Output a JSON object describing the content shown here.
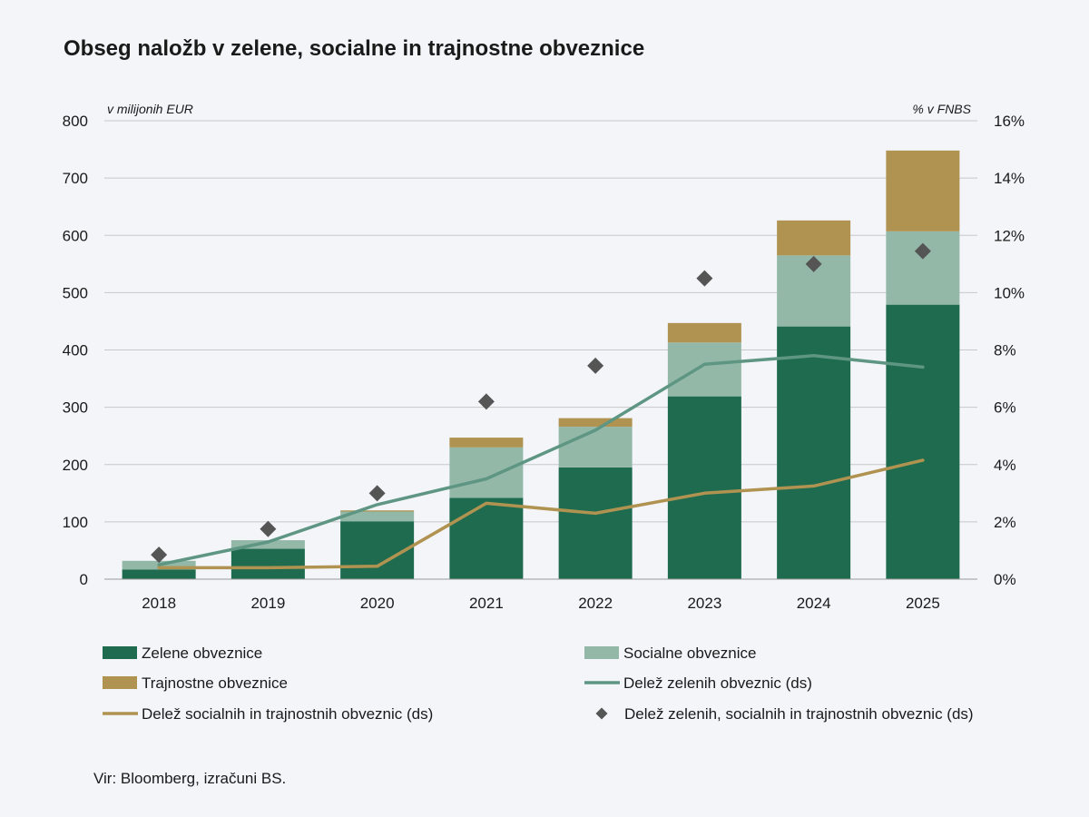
{
  "title": "Obseg naložb v zelene, socialne in trajnostne obveznice",
  "source": "Vir: Bloomberg, izračuni BS.",
  "colors": {
    "green": "#1f6b4f",
    "social": "#93b8a8",
    "sustainable": "#b09350",
    "green_share_line": "#5e9683",
    "soc_sust_line": "#b09350",
    "total_share_marker": "#555555",
    "grid": "#c8c8c8",
    "axis": "#999999"
  },
  "chart_data": {
    "type": "bar",
    "stacked": true,
    "categories": [
      "2018",
      "2019",
      "2020",
      "2021",
      "2022",
      "2023",
      "2024",
      "2025"
    ],
    "ylabel": "v milijonih EUR",
    "y2label": "% v FNBS",
    "ylim": [
      0,
      800
    ],
    "y2lim": [
      0,
      16
    ],
    "yticks": [
      "0",
      "100",
      "200",
      "300",
      "400",
      "500",
      "600",
      "700",
      "800"
    ],
    "y2ticks": [
      "0%",
      "2%",
      "4%",
      "6%",
      "8%",
      "10%",
      "12%",
      "14%",
      "16%"
    ],
    "grid": true,
    "legend_position": "bottom",
    "series": [
      {
        "name": "Zelene obveznice",
        "kind": "bar",
        "axis": "left",
        "color": "#1f6b4f",
        "values": [
          17,
          53,
          101,
          142,
          195,
          319,
          441,
          479
        ]
      },
      {
        "name": "Socialne obveznice",
        "kind": "bar",
        "axis": "left",
        "color": "#93b8a8",
        "values": [
          15,
          15,
          17,
          88,
          71,
          94,
          124,
          128
        ]
      },
      {
        "name": "Trajnostne obveznice",
        "kind": "bar",
        "axis": "left",
        "color": "#b09350",
        "values": [
          0,
          0,
          2,
          17,
          15,
          34,
          61,
          141
        ]
      },
      {
        "name": "Delež zelenih obveznic (ds)",
        "kind": "line",
        "axis": "right",
        "color": "#5e9683",
        "values": [
          0.5,
          1.3,
          2.6,
          3.5,
          5.2,
          7.5,
          7.8,
          7.4
        ]
      },
      {
        "name": "Delež socialnih in trajnostnih obveznic (ds)",
        "kind": "line",
        "axis": "right",
        "color": "#b09350",
        "values": [
          0.4,
          0.4,
          0.45,
          2.65,
          2.3,
          3.0,
          3.25,
          4.15
        ]
      },
      {
        "name": "Delež zelenih, socialnih in trajnostnih obveznic (ds)",
        "kind": "marker",
        "axis": "right",
        "color": "#555555",
        "values": [
          0.85,
          1.75,
          3.0,
          6.2,
          7.45,
          10.5,
          11.0,
          11.45
        ]
      }
    ]
  }
}
